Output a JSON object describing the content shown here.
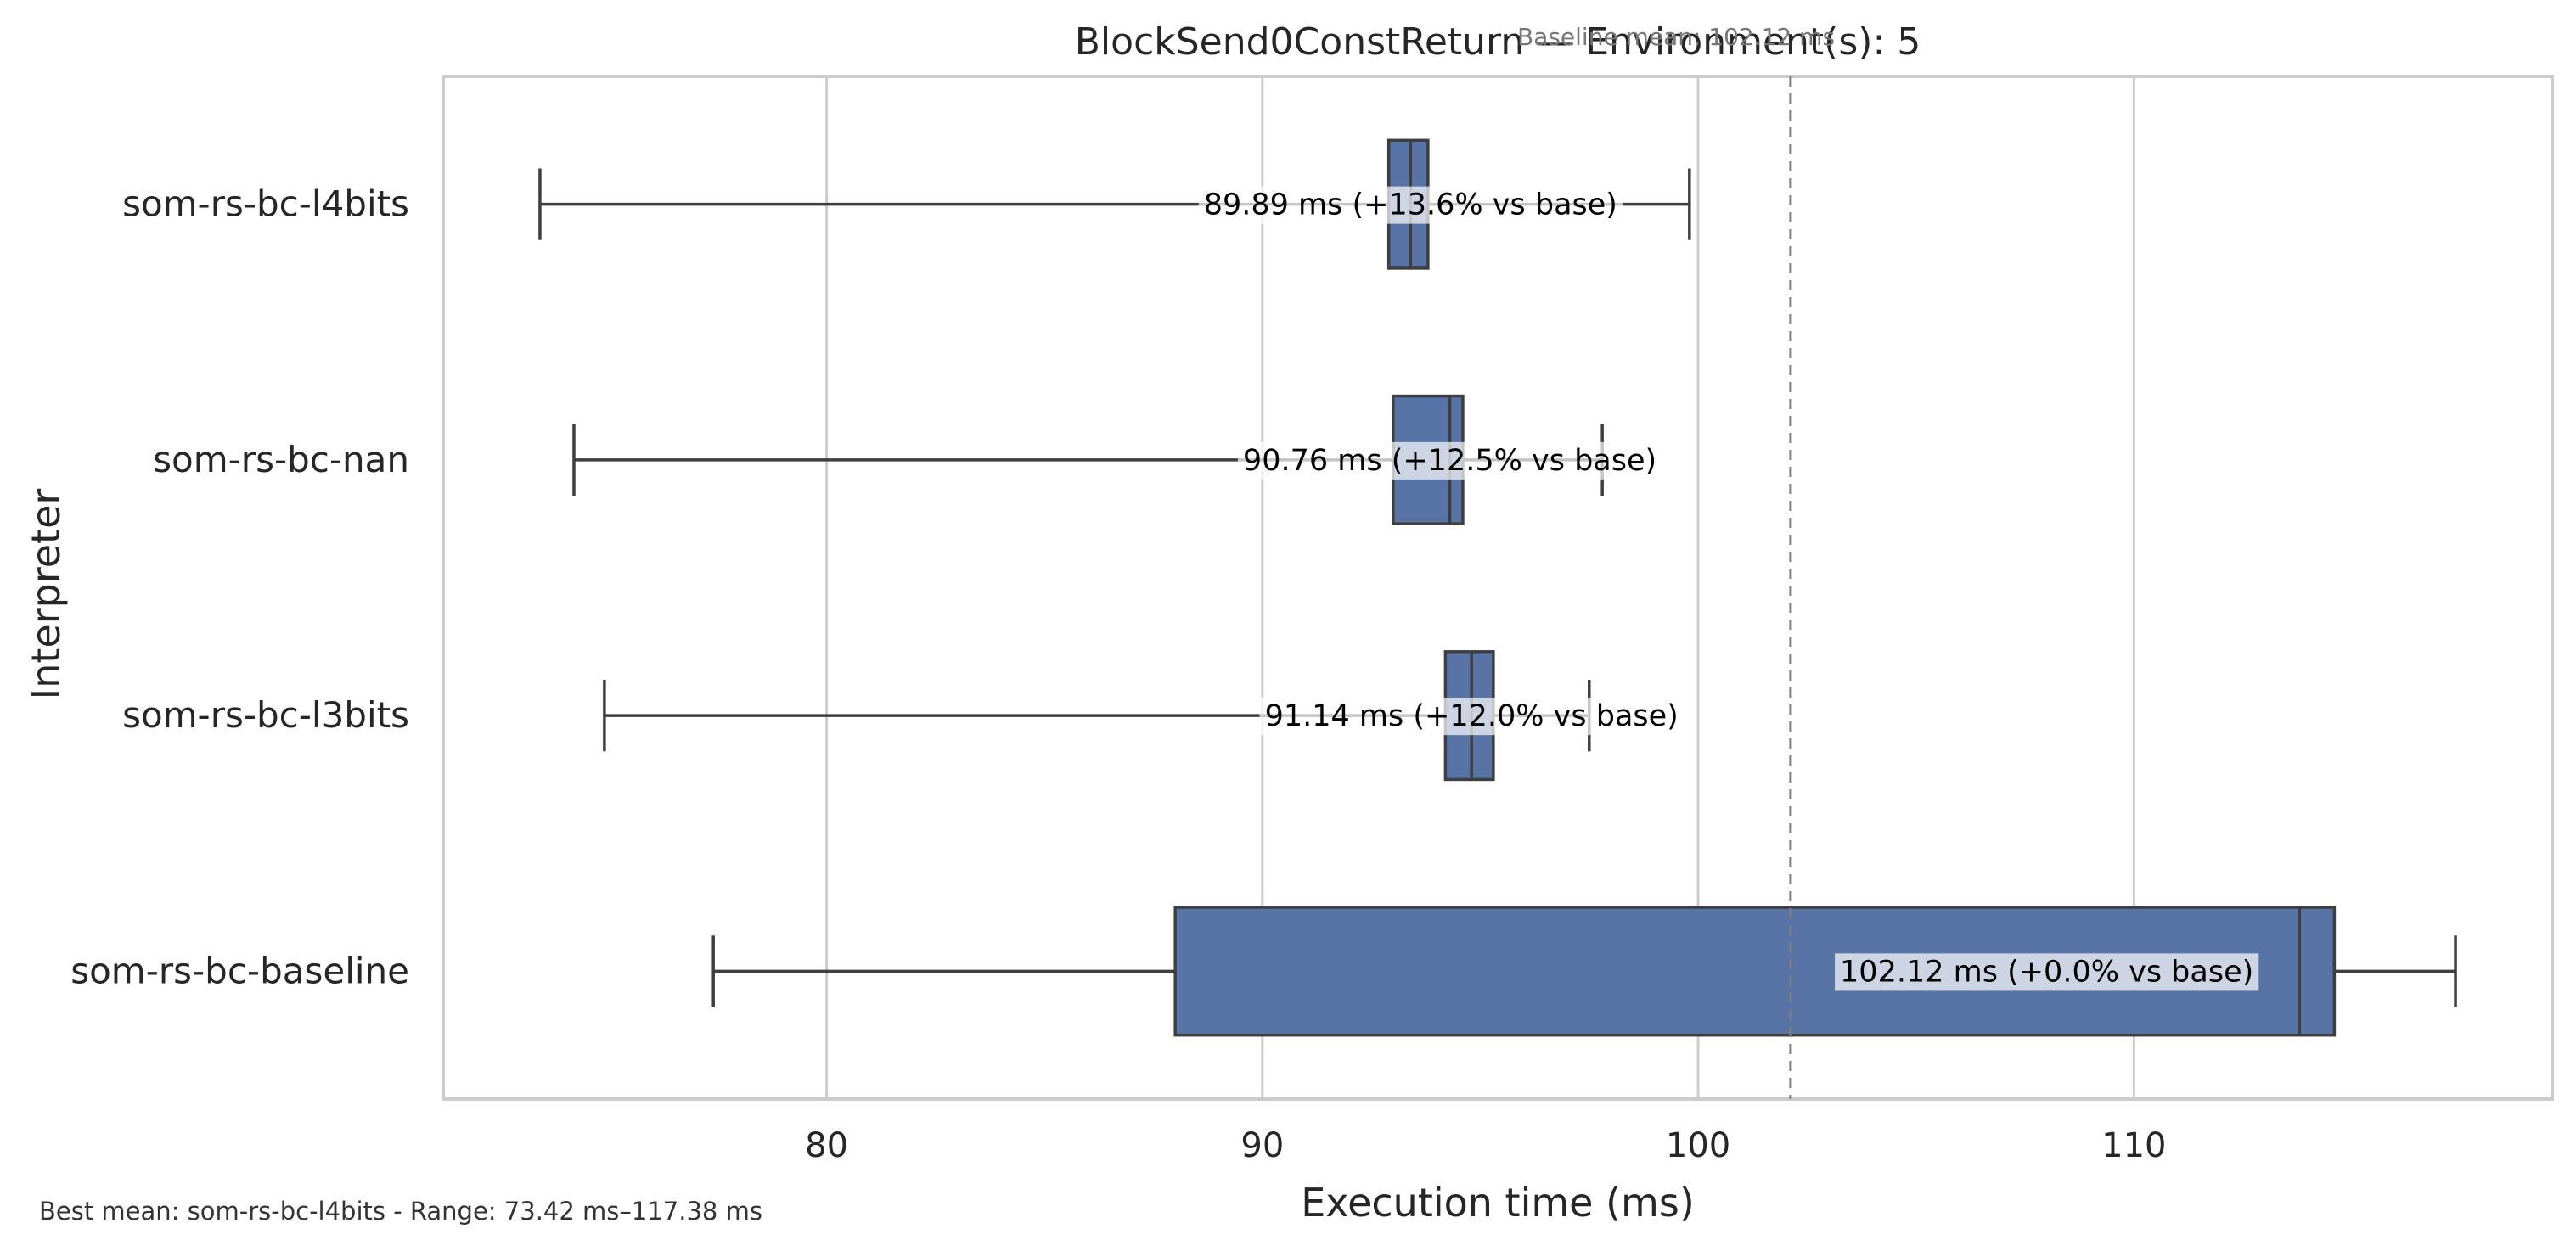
{
  "chart_data": {
    "type": "box",
    "title": "BlockSend0ConstReturn — Environment(s): 5",
    "xlabel": "Execution time (ms)",
    "ylabel": "Interpreter",
    "xlim": [
      71.2,
      119.6
    ],
    "xticks": [
      80,
      90,
      100,
      110
    ],
    "grid": "x",
    "baseline": {
      "label": "Baseline mean: 102.12 ms",
      "value": 102.12
    },
    "box_color": "#5874a6",
    "categories": [
      "som-rs-bc-l4bits",
      "som-rs-bc-nan",
      "som-rs-bc-l3bits",
      "som-rs-bc-baseline"
    ],
    "boxes": [
      {
        "name": "som-rs-bc-l4bits",
        "whisker_low": 73.42,
        "q1": 92.9,
        "median": 93.4,
        "q3": 93.8,
        "whisker_high": 99.8,
        "annotation": "89.89 ms  (+13.6% vs base)",
        "annot_x": 93.4
      },
      {
        "name": "som-rs-bc-nan",
        "whisker_low": 74.2,
        "q1": 93.0,
        "median": 94.3,
        "q3": 94.6,
        "whisker_high": 97.8,
        "annotation": "90.76 ms  (+12.5% vs base)",
        "annot_x": 94.3
      },
      {
        "name": "som-rs-bc-l3bits",
        "whisker_low": 74.9,
        "q1": 94.2,
        "median": 94.8,
        "q3": 95.3,
        "whisker_high": 97.5,
        "annotation": "91.14 ms  (+12.0% vs base)",
        "annot_x": 94.8
      },
      {
        "name": "som-rs-bc-baseline",
        "whisker_low": 77.4,
        "q1": 88.0,
        "median": 113.8,
        "q3": 114.6,
        "whisker_high": 117.38,
        "annotation": "102.12 ms  (+0.0% vs base)",
        "annot_x": 108.0
      }
    ],
    "footer": "Best mean: som-rs-bc-l4bits - Range: 73.42 ms–117.38 ms"
  }
}
